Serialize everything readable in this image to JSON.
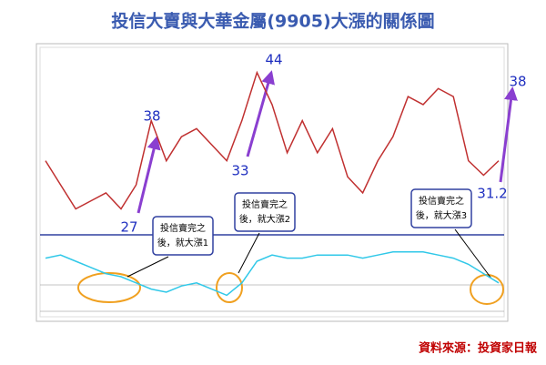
{
  "title": "投信大賣與大華金屬(9905)大漲的關係圖",
  "source": "資料來源：投資家日報",
  "chart_data": {
    "type": "line",
    "color": "#c03030",
    "ylim": [
      24,
      46
    ],
    "values": [
      33,
      30,
      27,
      28,
      29,
      27,
      30,
      38,
      33,
      36,
      37,
      35,
      33,
      38,
      44,
      40,
      34,
      38,
      34,
      37,
      31,
      29,
      33,
      36,
      41,
      40,
      42,
      41,
      33,
      31.2,
      33
    ],
    "indicator": {
      "color": "#30c8e8",
      "ylim": [
        -1,
        1
      ],
      "values": [
        0.6,
        0.7,
        0.5,
        0.3,
        0.1,
        0.0,
        -0.2,
        -0.4,
        -0.5,
        -0.3,
        -0.2,
        -0.4,
        -0.6,
        -0.2,
        0.5,
        0.7,
        0.6,
        0.6,
        0.7,
        0.7,
        0.7,
        0.6,
        0.7,
        0.8,
        0.8,
        0.8,
        0.7,
        0.6,
        0.4,
        0.1,
        -0.2
      ]
    },
    "annotations": [
      {
        "label": "27"
      },
      {
        "label": "38"
      },
      {
        "label": "33"
      },
      {
        "label": "44"
      },
      {
        "label": "31.2"
      },
      {
        "label": "38"
      }
    ],
    "callouts": [
      {
        "lines": [
          "投信賣完之",
          "後，就大漲1"
        ]
      },
      {
        "lines": [
          "投信賣完之",
          "後，就大漲2"
        ]
      },
      {
        "lines": [
          "投信賣完之",
          "後，就大漲3"
        ]
      }
    ]
  }
}
